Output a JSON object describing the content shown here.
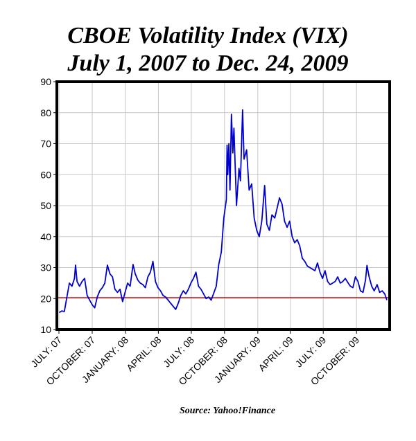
{
  "title_line1": "CBOE Volatility Index (VIX)",
  "title_line2": "July 1, 2007 to Dec. 24, 2009",
  "source": "Source: Yahoo!Finance",
  "chart_data": {
    "type": "line",
    "title": "CBOE Volatility Index (VIX)",
    "subtitle": "July 1, 2007 to Dec. 24, 2009",
    "xlabel": "",
    "ylabel": "",
    "ylim": [
      10,
      90
    ],
    "yticks": [
      10,
      20,
      30,
      40,
      50,
      60,
      70,
      80,
      90
    ],
    "grid": true,
    "legend": "none",
    "xticks": [
      {
        "label": "JULY: 07",
        "date": "2007-07-01"
      },
      {
        "label": "OCTOBER: 07",
        "date": "2007-10-01"
      },
      {
        "label": "JANUARY: 08",
        "date": "2008-01-01"
      },
      {
        "label": "APRIL: 08",
        "date": "2008-04-01"
      },
      {
        "label": "JULY: 08",
        "date": "2008-07-01"
      },
      {
        "label": "OCTOBER: 08",
        "date": "2008-10-01"
      },
      {
        "label": "JANUARY: 09",
        "date": "2009-01-01"
      },
      {
        "label": "APRIL: 09",
        "date": "2009-04-01"
      },
      {
        "label": "JULY: 09",
        "date": "2009-07-01"
      },
      {
        "label": "OCTOBER: 09",
        "date": "2009-10-01"
      }
    ],
    "reference_line": {
      "value": 20.3,
      "color": "#cc0000"
    },
    "series": [
      {
        "name": "",
        "color": "#0000cc",
        "points": [
          [
            "2007-07-02",
            15.5
          ],
          [
            "2007-07-09",
            16.0
          ],
          [
            "2007-07-16",
            15.8
          ],
          [
            "2007-07-23",
            20.5
          ],
          [
            "2007-07-30",
            25.0
          ],
          [
            "2007-08-06",
            24.0
          ],
          [
            "2007-08-13",
            26.5
          ],
          [
            "2007-08-16",
            30.8
          ],
          [
            "2007-08-20",
            25.5
          ],
          [
            "2007-08-27",
            24.0
          ],
          [
            "2007-09-03",
            25.5
          ],
          [
            "2007-09-10",
            26.5
          ],
          [
            "2007-09-17",
            21.0
          ],
          [
            "2007-09-24",
            19.5
          ],
          [
            "2007-10-01",
            18.0
          ],
          [
            "2007-10-08",
            17.0
          ],
          [
            "2007-10-15",
            20.5
          ],
          [
            "2007-10-22",
            22.5
          ],
          [
            "2007-10-29",
            23.5
          ],
          [
            "2007-11-05",
            25.0
          ],
          [
            "2007-11-12",
            30.8
          ],
          [
            "2007-11-19",
            28.0
          ],
          [
            "2007-11-26",
            27.0
          ],
          [
            "2007-12-03",
            23.0
          ],
          [
            "2007-12-10",
            22.0
          ],
          [
            "2007-12-17",
            23.0
          ],
          [
            "2007-12-24",
            19.0
          ],
          [
            "2007-12-31",
            22.0
          ],
          [
            "2008-01-07",
            25.0
          ],
          [
            "2008-01-14",
            24.0
          ],
          [
            "2008-01-22",
            31.0
          ],
          [
            "2008-01-28",
            28.0
          ],
          [
            "2008-02-04",
            26.0
          ],
          [
            "2008-02-11",
            25.0
          ],
          [
            "2008-02-18",
            24.5
          ],
          [
            "2008-02-25",
            23.5
          ],
          [
            "2008-03-03",
            27.0
          ],
          [
            "2008-03-10",
            28.5
          ],
          [
            "2008-03-17",
            32.0
          ],
          [
            "2008-03-24",
            25.5
          ],
          [
            "2008-03-31",
            23.5
          ],
          [
            "2008-04-07",
            22.5
          ],
          [
            "2008-04-14",
            21.0
          ],
          [
            "2008-04-21",
            20.5
          ],
          [
            "2008-04-28",
            19.5
          ],
          [
            "2008-05-05",
            18.5
          ],
          [
            "2008-05-12",
            17.5
          ],
          [
            "2008-05-19",
            16.5
          ],
          [
            "2008-05-26",
            18.5
          ],
          [
            "2008-06-02",
            21.0
          ],
          [
            "2008-06-09",
            22.5
          ],
          [
            "2008-06-16",
            21.5
          ],
          [
            "2008-06-23",
            23.0
          ],
          [
            "2008-06-30",
            25.0
          ],
          [
            "2008-07-07",
            26.5
          ],
          [
            "2008-07-14",
            28.5
          ],
          [
            "2008-07-21",
            24.0
          ],
          [
            "2008-07-28",
            23.0
          ],
          [
            "2008-08-04",
            21.5
          ],
          [
            "2008-08-11",
            20.0
          ],
          [
            "2008-08-18",
            20.5
          ],
          [
            "2008-08-25",
            19.5
          ],
          [
            "2008-09-02",
            22.0
          ],
          [
            "2008-09-08",
            24.0
          ],
          [
            "2008-09-15",
            31.0
          ],
          [
            "2008-09-22",
            35.0
          ],
          [
            "2008-09-29",
            46.0
          ],
          [
            "2008-10-06",
            52.0
          ],
          [
            "2008-10-08",
            69.5
          ],
          [
            "2008-10-10",
            60.0
          ],
          [
            "2008-10-13",
            70.0
          ],
          [
            "2008-10-16",
            55.0
          ],
          [
            "2008-10-20",
            79.5
          ],
          [
            "2008-10-24",
            67.0
          ],
          [
            "2008-10-27",
            75.0
          ],
          [
            "2008-11-03",
            50.0
          ],
          [
            "2008-11-10",
            62.0
          ],
          [
            "2008-11-14",
            58.0
          ],
          [
            "2008-11-20",
            80.9
          ],
          [
            "2008-11-24",
            65.0
          ],
          [
            "2008-12-01",
            68.0
          ],
          [
            "2008-12-08",
            55.0
          ],
          [
            "2008-12-15",
            57.0
          ],
          [
            "2008-12-22",
            46.0
          ],
          [
            "2008-12-29",
            42.0
          ],
          [
            "2009-01-05",
            40.0
          ],
          [
            "2009-01-12",
            45.0
          ],
          [
            "2009-01-20",
            56.5
          ],
          [
            "2009-01-26",
            44.0
          ],
          [
            "2009-02-02",
            42.0
          ],
          [
            "2009-02-09",
            47.0
          ],
          [
            "2009-02-17",
            46.0
          ],
          [
            "2009-02-23",
            49.0
          ],
          [
            "2009-03-02",
            52.5
          ],
          [
            "2009-03-09",
            50.5
          ],
          [
            "2009-03-16",
            45.0
          ],
          [
            "2009-03-23",
            43.0
          ],
          [
            "2009-03-30",
            45.0
          ],
          [
            "2009-04-06",
            40.0
          ],
          [
            "2009-04-13",
            38.0
          ],
          [
            "2009-04-20",
            39.0
          ],
          [
            "2009-04-27",
            37.0
          ],
          [
            "2009-05-04",
            33.0
          ],
          [
            "2009-05-11",
            32.0
          ],
          [
            "2009-05-18",
            30.5
          ],
          [
            "2009-05-25",
            30.0
          ],
          [
            "2009-06-01",
            29.5
          ],
          [
            "2009-06-08",
            29.0
          ],
          [
            "2009-06-15",
            31.5
          ],
          [
            "2009-06-22",
            28.5
          ],
          [
            "2009-06-29",
            26.5
          ],
          [
            "2009-07-06",
            29.0
          ],
          [
            "2009-07-13",
            25.5
          ],
          [
            "2009-07-20",
            24.5
          ],
          [
            "2009-07-27",
            25.0
          ],
          [
            "2009-08-03",
            25.5
          ],
          [
            "2009-08-10",
            27.0
          ],
          [
            "2009-08-17",
            25.0
          ],
          [
            "2009-08-24",
            25.5
          ],
          [
            "2009-08-31",
            26.5
          ],
          [
            "2009-09-08",
            25.0
          ],
          [
            "2009-09-14",
            24.0
          ],
          [
            "2009-09-21",
            23.5
          ],
          [
            "2009-09-28",
            27.0
          ],
          [
            "2009-10-05",
            25.5
          ],
          [
            "2009-10-12",
            22.5
          ],
          [
            "2009-10-19",
            22.0
          ],
          [
            "2009-10-26",
            26.0
          ],
          [
            "2009-10-30",
            30.7
          ],
          [
            "2009-11-05",
            27.0
          ],
          [
            "2009-11-12",
            24.0
          ],
          [
            "2009-11-19",
            22.5
          ],
          [
            "2009-11-27",
            24.5
          ],
          [
            "2009-12-04",
            22.0
          ],
          [
            "2009-12-11",
            22.5
          ],
          [
            "2009-12-18",
            21.5
          ],
          [
            "2009-12-24",
            19.5
          ]
        ]
      }
    ]
  }
}
